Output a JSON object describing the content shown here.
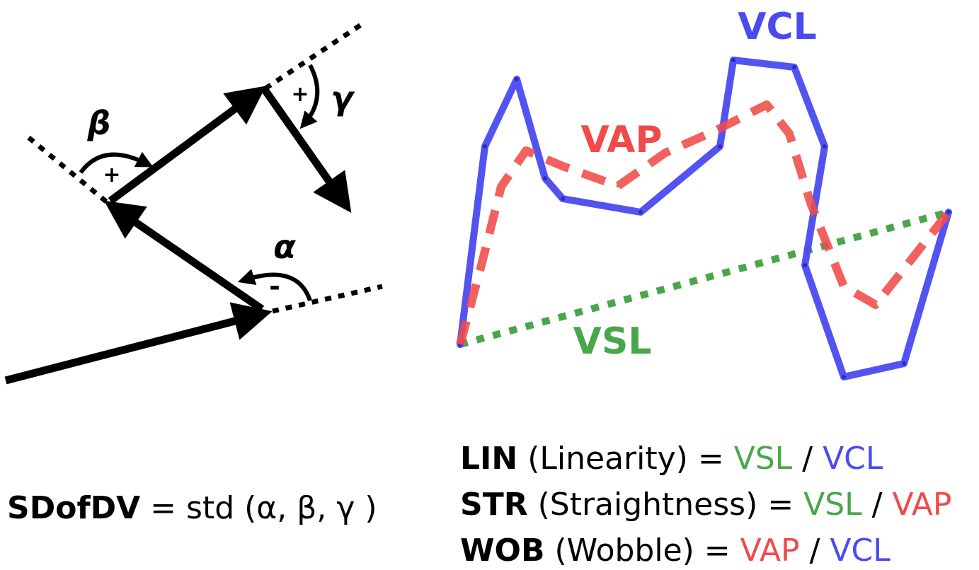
{
  "colors": {
    "vcl": "#4a4af0",
    "vap": "#f04a4a",
    "vsl": "#4aa64a",
    "ink": "#000000"
  },
  "angle_panel": {
    "labels": {
      "alpha": "α",
      "beta": "β",
      "gamma": "γ",
      "alpha_sign": "-",
      "beta_sign": "+",
      "gamma_sign": "+"
    }
  },
  "track_panel": {
    "labels": {
      "vcl": "VCL",
      "vap": "VAP",
      "vsl": "VSL"
    }
  },
  "formulas": {
    "sdofdv": {
      "name": "SDofDV",
      "rhs": "= std (α, β, γ )"
    },
    "lin": {
      "name": "LIN",
      "desc": "(Linearity) =",
      "num": "VSL",
      "sep": "/",
      "den": "VCL"
    },
    "str": {
      "name": "STR",
      "desc": "(Straightness) =",
      "num": "VSL",
      "sep": "/",
      "den": "VAP"
    },
    "wob": {
      "name": "WOB",
      "desc": "(Wobble) =",
      "num": "VAP",
      "sep": "/",
      "den": "VCL"
    }
  }
}
